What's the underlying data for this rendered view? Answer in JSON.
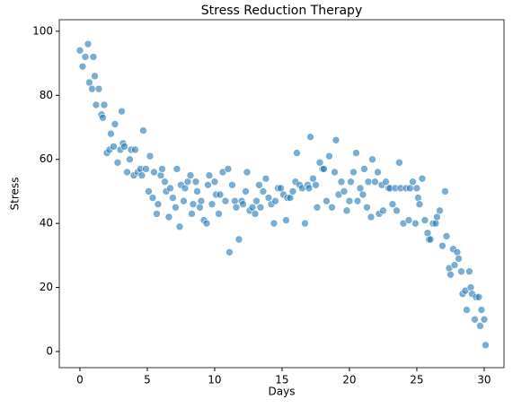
{
  "chart_data": {
    "type": "scatter",
    "title": "Stress Reduction Therapy",
    "x_label": "Days",
    "y_label": "Stress",
    "x": [
      0,
      0.2,
      0.4,
      0.6,
      0.7,
      0.9,
      1,
      1.1,
      1.2,
      1.4,
      1.6,
      1.7,
      1.8,
      2,
      2.2,
      2.3,
      2.5,
      2.6,
      2.8,
      3,
      3.1,
      3.2,
      3.3,
      3.5,
      3.7,
      3.8,
      4,
      4.1,
      4.3,
      4.5,
      4.6,
      4.7,
      4.9,
      5.1,
      5.2,
      5.4,
      5.5,
      5.7,
      5.8,
      6,
      6.1,
      6.3,
      6.4,
      6.6,
      6.7,
      6.9,
      7.1,
      7.2,
      7.4,
      7.5,
      7.7,
      7.8,
      8,
      8.2,
      8.3,
      8.4,
      8.6,
      8.7,
      8.9,
      9,
      9.2,
      9.4,
      9.5,
      9.6,
      9.8,
      10,
      10.1,
      10.3,
      10.4,
      10.6,
      10.8,
      11,
      11.1,
      11.3,
      11.5,
      11.6,
      11.8,
      12,
      12.1,
      12.3,
      12.4,
      12.6,
      12.8,
      13,
      13.1,
      13.3,
      13.4,
      13.6,
      13.8,
      14,
      14.2,
      14.4,
      14.5,
      14.7,
      14.9,
      15.1,
      15.3,
      15.4,
      15.6,
      15.8,
      16,
      16.1,
      16.3,
      16.5,
      16.7,
      16.9,
      17,
      17.1,
      17.3,
      17.5,
      17.6,
      17.8,
      18,
      18.1,
      18.3,
      18.5,
      18.7,
      18.9,
      19,
      19.2,
      19.4,
      19.6,
      19.8,
      20,
      20.1,
      20.3,
      20.5,
      20.6,
      20.8,
      21,
      21.1,
      21.3,
      21.4,
      21.6,
      21.7,
      21.9,
      22.1,
      22.2,
      22.4,
      22.5,
      22.7,
      22.9,
      23,
      23.2,
      23.4,
      23.5,
      23.7,
      23.8,
      24,
      24.2,
      24.4,
      24.5,
      24.7,
      24.9,
      25,
      25.1,
      25.2,
      25.4,
      25.6,
      25.8,
      25.9,
      26,
      26.2,
      26.4,
      26.5,
      26.7,
      26.9,
      27.1,
      27.2,
      27.4,
      27.5,
      27.7,
      27.8,
      28,
      28.1,
      28.3,
      28.4,
      28.6,
      28.7,
      28.9,
      29,
      29.1,
      29.3,
      29.4,
      29.6,
      29.7,
      29.8,
      30,
      30.1
    ],
    "series": [
      {
        "color": "#1f77b4",
        "values": [
          94,
          89,
          92,
          96,
          84,
          82,
          92,
          86,
          77,
          82,
          74,
          73,
          77,
          62,
          63,
          68,
          64,
          71,
          59,
          63,
          75,
          65,
          64,
          56,
          60,
          63,
          55,
          63,
          56,
          57,
          55,
          69,
          57,
          50,
          61,
          48,
          56,
          43,
          46,
          55,
          57,
          53,
          50,
          42,
          51,
          48,
          45,
          57,
          39,
          52,
          47,
          51,
          53,
          55,
          43,
          46,
          53,
          50,
          45,
          47,
          41,
          40,
          52,
          55,
          46,
          53,
          49,
          43,
          49,
          56,
          47,
          57,
          31,
          52,
          47,
          45,
          35,
          47,
          46,
          50,
          56,
          44,
          45,
          43,
          47,
          52,
          45,
          50,
          54,
          48,
          46,
          40,
          47,
          51,
          51,
          49,
          41,
          48,
          48,
          50,
          53,
          62,
          52,
          51,
          40,
          52,
          51,
          67,
          54,
          52,
          45,
          59,
          57,
          57,
          47,
          61,
          45,
          56,
          66,
          49,
          53,
          50,
          44,
          47,
          53,
          56,
          62,
          47,
          51,
          49,
          57,
          45,
          53,
          42,
          60,
          53,
          56,
          43,
          52,
          44,
          53,
          51,
          51,
          46,
          51,
          44,
          59,
          51,
          40,
          51,
          41,
          51,
          53,
          40,
          51,
          48,
          46,
          54,
          41,
          37,
          35,
          35,
          40,
          40,
          42,
          44,
          33,
          50,
          36,
          26,
          24,
          32,
          27,
          31,
          29,
          25,
          18,
          19,
          13,
          25,
          20,
          18,
          10,
          17,
          17,
          8,
          13,
          10,
          2
        ]
      }
    ],
    "xlim": [
      -1.53,
      31.47
    ],
    "ylim": [
      -5.04,
      103.6
    ],
    "xticks": [
      0,
      5,
      10,
      15,
      20,
      25,
      30
    ],
    "yticks": [
      0,
      20,
      40,
      60,
      80,
      100
    ]
  }
}
